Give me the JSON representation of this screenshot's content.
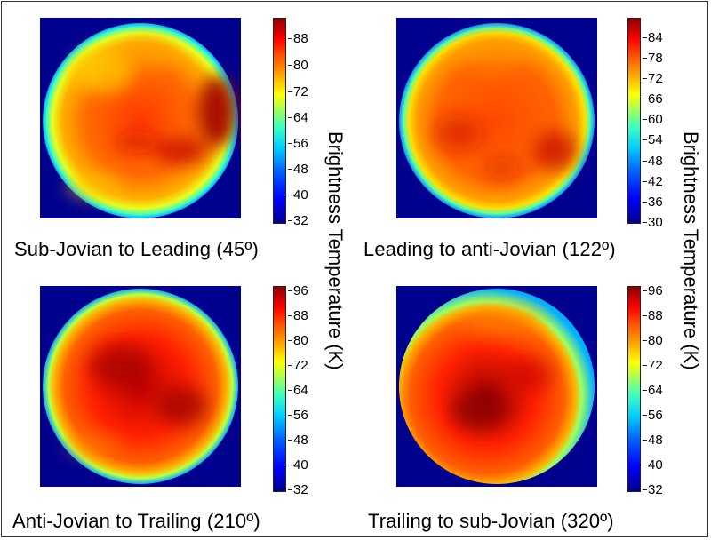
{
  "panels": [
    {
      "caption": "Sub-Jovian to Leading (45º)",
      "ticks": [
        "88",
        "80",
        "72",
        "64",
        "56",
        "48",
        "40",
        "32"
      ]
    },
    {
      "caption": "Leading to anti-Jovian (122º)",
      "ticks": [
        "84",
        "78",
        "72",
        "66",
        "60",
        "54",
        "48",
        "42",
        "36",
        "30"
      ]
    },
    {
      "caption": "Anti-Jovian to Trailing (210º)",
      "ticks": [
        "96",
        "88",
        "80",
        "72",
        "64",
        "56",
        "48",
        "40",
        "32"
      ]
    },
    {
      "caption": "Trailing to sub-Jovian (320º)",
      "ticks": [
        "96",
        "88",
        "80",
        "72",
        "64",
        "56",
        "48",
        "40",
        "32"
      ]
    }
  ],
  "colorbar_label": "Brightness Temperature (K)",
  "colors": {
    "background": "#00008f",
    "hot": "#8f0000",
    "warm": "#ff4000",
    "mid": "#ffff00",
    "cool": "#00cfff"
  }
}
